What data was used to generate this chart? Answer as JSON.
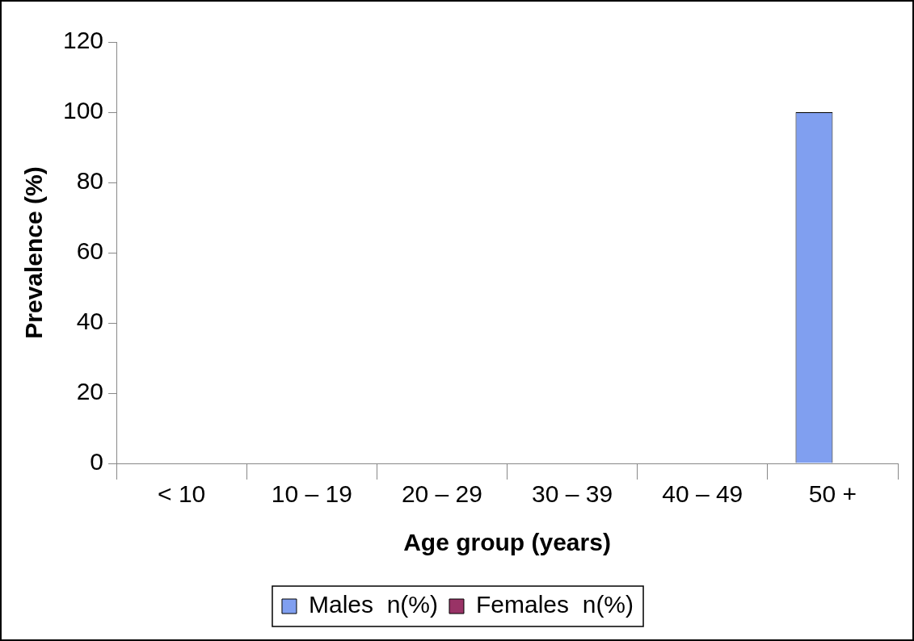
{
  "chart_data": {
    "type": "bar",
    "xlabel": "Age group (years)",
    "ylabel": "Prevalence (%)",
    "categories": [
      "< 10",
      "10 – 19",
      "20 – 29",
      "30 – 39",
      "40 – 49",
      "50 +"
    ],
    "series": [
      {
        "name": "Males  n(%)",
        "color": "#809ff0",
        "values": [
          0,
          0,
          0,
          0,
          0,
          100
        ]
      },
      {
        "name": "Females  n(%)",
        "color": "#993366",
        "values": [
          0,
          0,
          0,
          0,
          0,
          0
        ]
      }
    ],
    "ylim": [
      0,
      120
    ],
    "yticks": [
      0,
      20,
      40,
      60,
      80,
      100,
      120
    ],
    "grid": false,
    "legend": "bottom"
  }
}
